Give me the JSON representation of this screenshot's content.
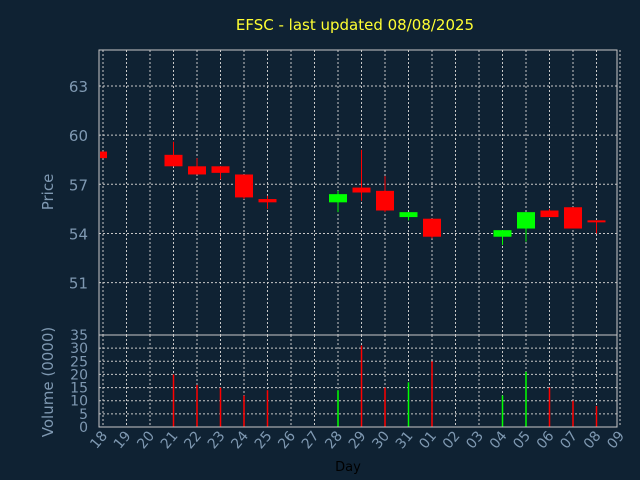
{
  "title": "EFSC - last updated 08/08/2025",
  "colors": {
    "background": "#0f2233",
    "title": "#ffff33",
    "axis_text": "#7f99b2",
    "up": "#00ff00",
    "down": "#ff0000",
    "grid": "#c8c8c8",
    "frame": "#c8c8c8"
  },
  "chart_data": [
    {
      "type": "candlestick",
      "ylabel": "Price",
      "xlabel": "Day",
      "ylim": [
        47.8,
        65.2
      ],
      "yticks": [
        "51",
        "54",
        "57",
        "60",
        "63"
      ],
      "ytick_values": [
        51,
        54,
        57,
        60,
        63
      ],
      "grid": true,
      "categories": [
        "18",
        "19",
        "20",
        "21",
        "22",
        "23",
        "24",
        "25",
        "26",
        "27",
        "28",
        "29",
        "30",
        "31",
        "01",
        "02",
        "03",
        "04",
        "05",
        "06",
        "07",
        "08",
        "09"
      ],
      "candles": [
        {
          "day": "18",
          "open": 59.0,
          "close": 58.6,
          "high": 59.0,
          "low": 58.6
        },
        {
          "day": "21",
          "open": 58.8,
          "close": 58.1,
          "high": 59.6,
          "low": 58.1
        },
        {
          "day": "22",
          "open": 58.1,
          "close": 57.6,
          "high": 58.6,
          "low": 57.6
        },
        {
          "day": "23",
          "open": 58.1,
          "close": 57.7,
          "high": 58.1,
          "low": 57.3
        },
        {
          "day": "24",
          "open": 57.6,
          "close": 56.2,
          "high": 57.6,
          "low": 56.1
        },
        {
          "day": "25",
          "open": 56.1,
          "close": 55.9,
          "high": 56.3,
          "low": 55.5
        },
        {
          "day": "28",
          "open": 55.9,
          "close": 56.4,
          "high": 56.6,
          "low": 55.3
        },
        {
          "day": "29",
          "open": 56.8,
          "close": 56.5,
          "high": 59.1,
          "low": 56.0
        },
        {
          "day": "30",
          "open": 56.6,
          "close": 55.4,
          "high": 57.5,
          "low": 55.3
        },
        {
          "day": "31",
          "open": 55.0,
          "close": 55.3,
          "high": 55.3,
          "low": 54.8
        },
        {
          "day": "01",
          "open": 54.9,
          "close": 53.8,
          "high": 54.9,
          "low": 53.7
        },
        {
          "day": "04",
          "open": 53.8,
          "close": 54.2,
          "high": 54.2,
          "low": 53.3
        },
        {
          "day": "05",
          "open": 54.3,
          "close": 55.3,
          "high": 55.3,
          "low": 53.5
        },
        {
          "day": "06",
          "open": 55.4,
          "close": 55.0,
          "high": 55.5,
          "low": 55.0
        },
        {
          "day": "07",
          "open": 55.6,
          "close": 54.3,
          "high": 55.6,
          "low": 54.3
        },
        {
          "day": "08",
          "open": 54.8,
          "close": 54.7,
          "high": 54.8,
          "low": 54.0
        }
      ]
    },
    {
      "type": "bar",
      "ylabel": "Volume (0000)",
      "xlabel": "Day",
      "ylim": [
        0,
        35
      ],
      "yticks": [
        "0",
        "5",
        "10",
        "15",
        "20",
        "25",
        "30",
        "35"
      ],
      "ytick_values": [
        0,
        5,
        10,
        15,
        20,
        25,
        30,
        35
      ],
      "grid": true,
      "bars": [
        {
          "day": "21",
          "value": 20,
          "dir": "down"
        },
        {
          "day": "22",
          "value": 16,
          "dir": "down"
        },
        {
          "day": "23",
          "value": 15,
          "dir": "down"
        },
        {
          "day": "24",
          "value": 12,
          "dir": "down"
        },
        {
          "day": "25",
          "value": 14,
          "dir": "down"
        },
        {
          "day": "28",
          "value": 14,
          "dir": "up"
        },
        {
          "day": "29",
          "value": 31,
          "dir": "down"
        },
        {
          "day": "30",
          "value": 15,
          "dir": "down"
        },
        {
          "day": "31",
          "value": 17,
          "dir": "up"
        },
        {
          "day": "01",
          "value": 25,
          "dir": "down"
        },
        {
          "day": "04",
          "value": 12,
          "dir": "up"
        },
        {
          "day": "05",
          "value": 21,
          "dir": "up"
        },
        {
          "day": "06",
          "value": 15,
          "dir": "down"
        },
        {
          "day": "07",
          "value": 10,
          "dir": "down"
        },
        {
          "day": "08",
          "value": 8,
          "dir": "down"
        }
      ]
    }
  ]
}
